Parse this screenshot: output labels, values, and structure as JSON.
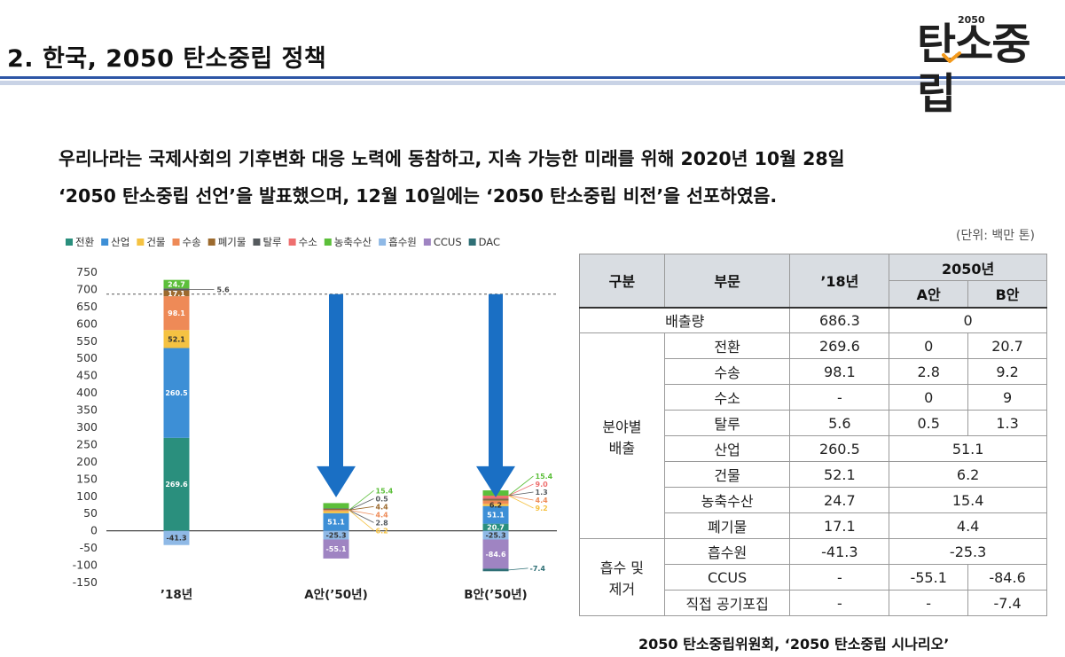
{
  "header": {
    "title": "2. 한국, 2050 탄소중립 정책",
    "logo_year": "2050",
    "logo_text": "탄소중립"
  },
  "description": {
    "line1": "우리나라는 국제사회의 기후변화 대응 노력에 동참하고, 지속 가능한 미래를 위해 2020년 10월 28일",
    "line2": "‘2050 탄소중립 선언’을 발표했으며, 12월 10일에는 ‘2050 탄소중립 비전’을 선포하였음."
  },
  "chart_data": {
    "type": "bar",
    "stacked": true,
    "categories": [
      "’18년",
      "A안(’50년)",
      "B안(’50년)"
    ],
    "ylim": [
      -150,
      750
    ],
    "yticks": [
      750,
      700,
      650,
      600,
      550,
      500,
      450,
      400,
      350,
      300,
      250,
      200,
      150,
      100,
      50,
      0,
      -50,
      -100,
      -150
    ],
    "reference_line": 686.3,
    "legend_position": "top",
    "series": [
      {
        "name": "전환",
        "color": "#2a8f7d",
        "values": [
          269.6,
          0,
          20.7
        ]
      },
      {
        "name": "산업",
        "color": "#3d8fd6",
        "values": [
          260.5,
          51.1,
          51.1
        ]
      },
      {
        "name": "건물",
        "color": "#f5c242",
        "values": [
          52.1,
          6.2,
          6.2
        ]
      },
      {
        "name": "수송",
        "color": "#ee8a57",
        "values": [
          98.1,
          2.8,
          9.2
        ]
      },
      {
        "name": "폐기물",
        "color": "#9c6a2e",
        "values": [
          17.1,
          4.4,
          4.4
        ]
      },
      {
        "name": "탈루",
        "color": "#555a5e",
        "values": [
          5.6,
          0.5,
          1.3
        ]
      },
      {
        "name": "수소",
        "color": "#ee6f6f",
        "values": [
          0,
          0,
          9.0
        ]
      },
      {
        "name": "농축수산",
        "color": "#5cbf3a",
        "values": [
          24.7,
          15.4,
          15.4
        ]
      },
      {
        "name": "흡수원",
        "color": "#8fb9e6",
        "values": [
          -41.3,
          -25.3,
          -25.3
        ]
      },
      {
        "name": "CCUS",
        "color": "#9f84c2",
        "values": [
          0,
          -55.1,
          -84.6
        ]
      },
      {
        "name": "DAC",
        "color": "#2e6f75",
        "values": [
          0,
          0,
          -7.4
        ]
      }
    ],
    "labels": {
      "bar0": [
        {
          "series": "전환",
          "text": "269.6"
        },
        {
          "series": "산업",
          "text": "260.5"
        },
        {
          "series": "건물",
          "text": "52.1"
        },
        {
          "series": "수송",
          "text": "98.1"
        },
        {
          "series": "폐기물",
          "text": "17.1"
        },
        {
          "series": "농축수산",
          "text": "24.7"
        },
        {
          "series": "흡수원",
          "text": "-41.3"
        }
      ],
      "bar0_callout": {
        "series": "탈루",
        "text": "5.6"
      },
      "bar1_inside": [
        {
          "series": "산업",
          "text": "51.1"
        },
        {
          "series": "흡수원",
          "text": "-25.3"
        },
        {
          "series": "CCUS",
          "text": "-55.1"
        }
      ],
      "bar1_callouts": [
        "15.4",
        "0.5",
        "4.4",
        "4.4",
        "2.8",
        "6.2"
      ],
      "bar2_inside": [
        {
          "series": "전환",
          "text": "20.7"
        },
        {
          "series": "산업",
          "text": "51.1"
        },
        {
          "series": "건물",
          "text": "6.2"
        },
        {
          "series": "흡수원",
          "text": "-25.3"
        },
        {
          "series": "CCUS",
          "text": "-84.6"
        }
      ],
      "bar2_callouts": [
        "15.4",
        "9.0",
        "1.3",
        "4.4",
        "9.2"
      ],
      "bar2_dac_callout": "-7.4"
    }
  },
  "table": {
    "unit": "(단위: 백만 톤)",
    "headers": {
      "category": "구분",
      "sector": "부문",
      "y18": "’18년",
      "y2050": "2050년",
      "planA": "A안",
      "planB": "B안"
    },
    "emissions": {
      "label": "배출량",
      "y18": "686.3",
      "y2050": "0"
    },
    "sector_group_label_1": "분야별",
    "sector_group_label_2": "배출",
    "sector_rows": [
      {
        "sector": "전환",
        "y18": "269.6",
        "a": "0",
        "b": "20.7"
      },
      {
        "sector": "수송",
        "y18": "98.1",
        "a": "2.8",
        "b": "9.2"
      },
      {
        "sector": "수소",
        "y18": "-",
        "a": "0",
        "b": "9"
      },
      {
        "sector": "탈루",
        "y18": "5.6",
        "a": "0.5",
        "b": "1.3"
      },
      {
        "sector": "산업",
        "y18": "260.5",
        "ab": "51.1"
      },
      {
        "sector": "건물",
        "y18": "52.1",
        "ab": "6.2"
      },
      {
        "sector": "농축수산",
        "y18": "24.7",
        "ab": "15.4"
      },
      {
        "sector": "폐기물",
        "y18": "17.1",
        "ab": "4.4"
      }
    ],
    "removal_group_label_1": "흡수 및",
    "removal_group_label_2": "제거",
    "removal_rows": [
      {
        "sector": "흡수원",
        "y18": "-41.3",
        "ab": "-25.3"
      },
      {
        "sector": "CCUS",
        "y18": "-",
        "a": "-55.1",
        "b": "-84.6"
      },
      {
        "sector": "직접 공기포집",
        "y18": "-",
        "a": "-",
        "b": "-7.4"
      }
    ]
  },
  "source": "2050 탄소중립위원회, ‘2050 탄소중립 시나리오’"
}
